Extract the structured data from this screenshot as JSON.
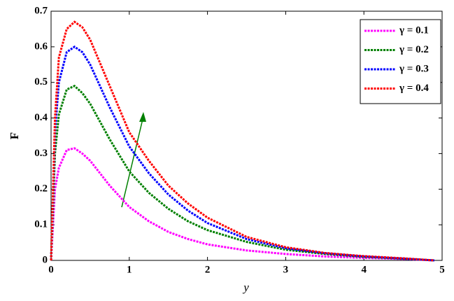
{
  "chart_data": {
    "type": "line",
    "x_label": "y",
    "y_label": "F",
    "x": [
      0,
      0.05,
      0.1,
      0.2,
      0.3,
      0.4,
      0.5,
      0.75,
      1,
      1.25,
      1.5,
      1.75,
      2,
      2.5,
      3,
      3.5,
      4,
      4.5,
      4.9
    ],
    "series": [
      {
        "name": "γ = 0.1",
        "color": "#ff00ff",
        "values": [
          0,
          0.2,
          0.26,
          0.31,
          0.315,
          0.3,
          0.28,
          0.21,
          0.15,
          0.11,
          0.08,
          0.06,
          0.045,
          0.028,
          0.018,
          0.011,
          0.007,
          0.004,
          0
        ]
      },
      {
        "name": "γ = 0.2",
        "color": "#008000",
        "values": [
          0,
          0.3,
          0.41,
          0.48,
          0.49,
          0.47,
          0.44,
          0.34,
          0.25,
          0.19,
          0.145,
          0.11,
          0.085,
          0.052,
          0.03,
          0.018,
          0.01,
          0.005,
          0
        ]
      },
      {
        "name": "γ = 0.3",
        "color": "#0000ff",
        "values": [
          0,
          0.36,
          0.5,
          0.585,
          0.6,
          0.585,
          0.55,
          0.43,
          0.32,
          0.245,
          0.185,
          0.14,
          0.105,
          0.06,
          0.034,
          0.02,
          0.011,
          0.005,
          0
        ]
      },
      {
        "name": "γ = 0.4",
        "color": "#ff0000",
        "values": [
          0,
          0.4,
          0.57,
          0.65,
          0.67,
          0.655,
          0.62,
          0.49,
          0.36,
          0.28,
          0.21,
          0.16,
          0.12,
          0.066,
          0.037,
          0.021,
          0.012,
          0.006,
          0
        ]
      }
    ],
    "xlim": [
      0,
      5
    ],
    "ylim": [
      0,
      0.7
    ],
    "xticks": [
      0,
      1,
      2,
      3,
      4,
      5
    ],
    "yticks": [
      0,
      0.1,
      0.2,
      0.3,
      0.4,
      0.5,
      0.6,
      0.7
    ],
    "legend": "upper right"
  }
}
